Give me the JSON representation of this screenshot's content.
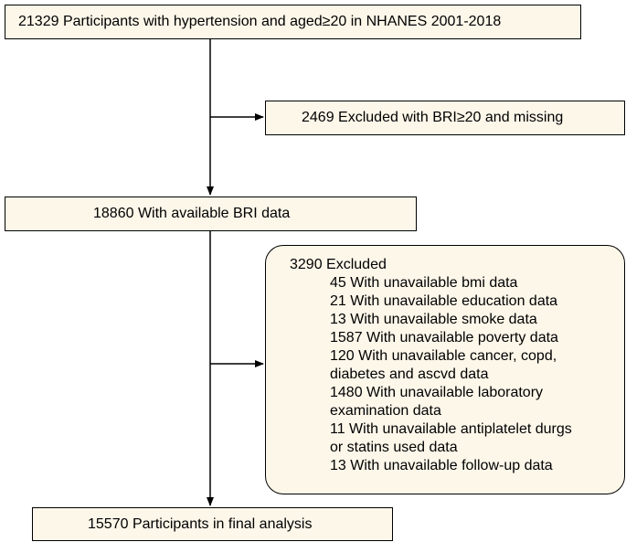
{
  "top": "21329 Participants with hypertension and aged≥20 in NHANES 2001-2018",
  "exclusion1": "2469 Excluded with BRI≥20 and missing",
  "middle": "18860 With available BRI data",
  "exclusion2": {
    "title": "3290 Excluded",
    "items": [
      "45 With unavailable bmi data",
      "21 With unavailable education data",
      "13 With unavailable smoke data",
      "1587 With unavailable poverty data",
      "120 With unavailable cancer, copd,\ndiabetes and ascvd data",
      "1480 With unavailable laboratory\nexamination data",
      "11 With unavailable antiplatelet durgs\nor statins used data",
      "13 With unavailable follow-up data"
    ]
  },
  "final": "15570 Participants in final analysis"
}
